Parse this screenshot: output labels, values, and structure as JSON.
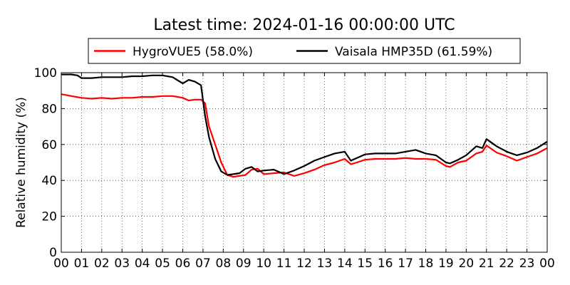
{
  "chart_data": {
    "type": "line",
    "title": "Latest time: 2024-01-16 00:00:00 UTC",
    "xlabel": "",
    "ylabel": "Relative humidity (%)",
    "xlim": [
      0,
      24
    ],
    "ylim": [
      0,
      100
    ],
    "x_ticks": [
      "00",
      "01",
      "02",
      "03",
      "04",
      "05",
      "06",
      "07",
      "08",
      "09",
      "10",
      "11",
      "12",
      "13",
      "14",
      "15",
      "16",
      "17",
      "18",
      "19",
      "20",
      "21",
      "22",
      "23",
      "00"
    ],
    "y_ticks": [
      0,
      20,
      40,
      60,
      80,
      100
    ],
    "grid": true,
    "legend_position": "top-center",
    "series": [
      {
        "name": "HygroVUE5 (58.0%)",
        "color": "#ff0000",
        "x": [
          0,
          0.5,
          1,
          1.5,
          2,
          2.5,
          3,
          3.5,
          4,
          4.5,
          5,
          5.5,
          6,
          6.3,
          6.6,
          6.9,
          7.1,
          7.3,
          7.6,
          7.9,
          8.2,
          8.5,
          8.8,
          9.1,
          9.4,
          9.7,
          10,
          10.5,
          11,
          11.5,
          12,
          12.5,
          13,
          13.5,
          14,
          14.3,
          14.6,
          15,
          15.5,
          16,
          16.5,
          17,
          17.5,
          18,
          18.5,
          19,
          19.2,
          19.6,
          20,
          20.5,
          20.8,
          21,
          21.5,
          22,
          22.5,
          23,
          23.5,
          24
        ],
        "y": [
          88,
          87,
          86,
          85.5,
          86,
          85.5,
          86,
          86,
          86.5,
          86.5,
          87,
          87,
          86,
          84.5,
          85,
          85,
          83,
          70,
          60,
          50,
          43,
          42,
          42.5,
          43,
          46,
          46.5,
          43.5,
          44,
          44.5,
          42.5,
          44,
          46,
          48.5,
          50,
          52,
          49,
          50,
          51.5,
          52,
          52,
          52,
          52.5,
          52,
          52,
          51.5,
          48,
          47.5,
          50,
          51,
          55,
          56,
          59.5,
          55.5,
          53.5,
          51,
          53,
          55,
          58
        ]
      },
      {
        "name": "Vaisala HMP35D (61.59%)",
        "color": "#000000",
        "x": [
          0,
          0.5,
          0.8,
          1,
          1.5,
          2,
          2.5,
          3,
          3.5,
          4,
          4.5,
          5,
          5.5,
          6,
          6.3,
          6.6,
          6.9,
          7.1,
          7.3,
          7.6,
          7.9,
          8.2,
          8.5,
          8.8,
          9.1,
          9.4,
          9.7,
          10,
          10.5,
          11,
          11.5,
          12,
          12.5,
          13,
          13.5,
          14,
          14.3,
          14.6,
          15,
          15.5,
          16,
          16.5,
          17,
          17.5,
          18,
          18.5,
          19,
          19.2,
          19.6,
          20,
          20.5,
          20.8,
          21,
          21.5,
          22,
          22.5,
          23,
          23.5,
          24
        ],
        "y": [
          99,
          99,
          98.5,
          97,
          97,
          97.5,
          97.5,
          97.5,
          98,
          98,
          98.5,
          98.5,
          97.5,
          94,
          96,
          95,
          93,
          76,
          64,
          52,
          45,
          43,
          43.5,
          44,
          46.5,
          47.5,
          45,
          45.5,
          46,
          43.5,
          45.5,
          48,
          51,
          53,
          55,
          56,
          51,
          52.5,
          54.5,
          55,
          55,
          55,
          56,
          57,
          55,
          54,
          50,
          49.5,
          51.5,
          54,
          59,
          58,
          63,
          59,
          56,
          54,
          55.5,
          58,
          61.6
        ]
      }
    ]
  }
}
